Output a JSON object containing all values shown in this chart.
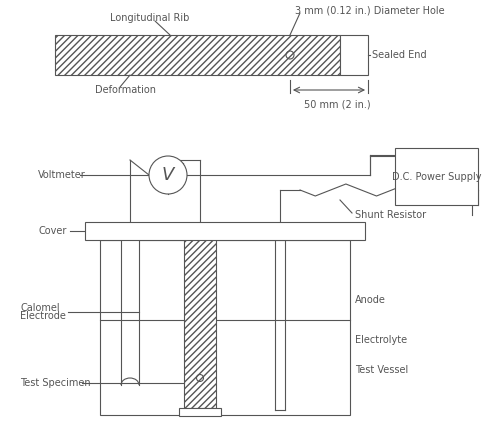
{
  "background_color": "#ffffff",
  "line_color": "#555555",
  "labels": {
    "longitudinal_rib": "Longitudinal Rib",
    "deformation": "Deformation",
    "diameter_hole": "3 mm (0.12 in.) Diameter Hole",
    "sealed_end": "Sealed End",
    "dimension": "50 mm (2 in.)",
    "voltmeter": "Voltmeter",
    "cover": "Cover",
    "calomel_electrode_1": "Calomel",
    "calomel_electrode_2": "Electrode",
    "test_specimen": "Test Specimen",
    "anode": "Anode",
    "electrolyte": "Electrolyte",
    "test_vessel": "Test Vessel",
    "power_supply_1": "D.C. Power Supply",
    "shunt_resistor": "Shunt Resistor"
  },
  "font_size": 7.0
}
